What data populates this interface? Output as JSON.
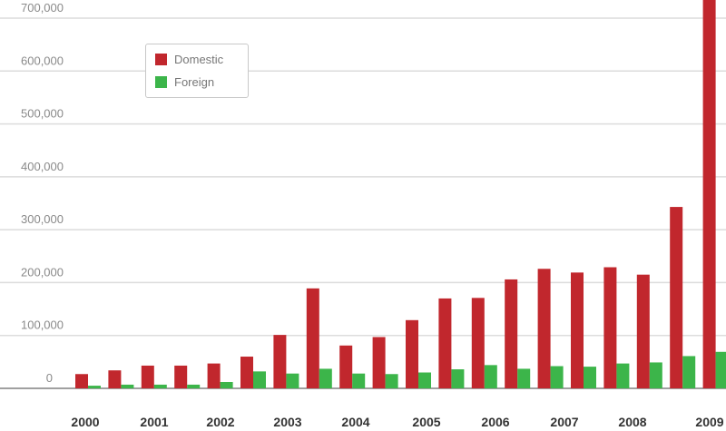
{
  "chart_data": {
    "type": "bar",
    "title": "",
    "xlabel": "",
    "ylabel": "",
    "ylim": [
      0,
      700000
    ],
    "yticks": [
      "0",
      "100,000",
      "200,000",
      "300,000",
      "400,000",
      "500,000",
      "600,000",
      "700,000"
    ],
    "grid": true,
    "legend": "top-left",
    "x_labels": [
      "2000",
      "2001",
      "2002",
      "2003",
      "2004",
      "2005",
      "2006",
      "2007",
      "2008",
      "2009"
    ],
    "categories": [
      "2000a",
      "2000b",
      "2001a",
      "2001b",
      "2002a",
      "2002b",
      "2003a",
      "2003b",
      "2004a",
      "2004b",
      "2005a",
      "2005b",
      "2006a",
      "2006b",
      "2007a",
      "2007b",
      "2008a",
      "2008b",
      "2009a",
      "2009b"
    ],
    "series": [
      {
        "name": "Domestic",
        "color": "#c1272d",
        "values": [
          27000,
          34000,
          43000,
          43000,
          47000,
          60000,
          101000,
          189000,
          81000,
          97000,
          129000,
          170000,
          171000,
          206000,
          226000,
          219000,
          229000,
          215000,
          343000,
          740000
        ]
      },
      {
        "name": "Foreign",
        "color": "#3cb54a",
        "values": [
          5000,
          7000,
          7000,
          7000,
          12000,
          32000,
          28000,
          37000,
          28000,
          27000,
          30000,
          36000,
          44000,
          37000,
          42000,
          41000,
          47000,
          49000,
          61000,
          69000
        ]
      }
    ]
  }
}
